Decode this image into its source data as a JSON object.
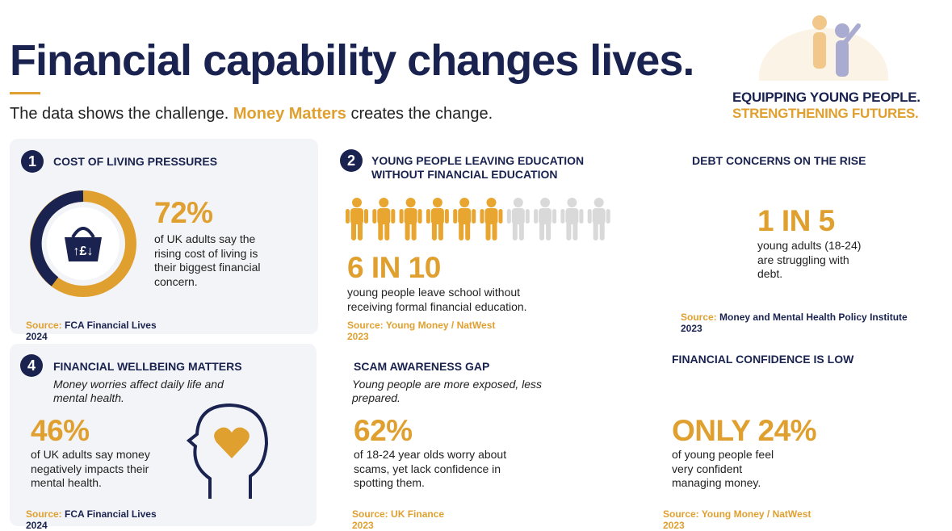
{
  "header": {
    "title": "Financial capability changes lives.",
    "subtitle_prefix": "The data shows the challenge.",
    "subtitle_highlight": "Money Matters",
    "subtitle_suffix": "creates the change."
  },
  "tagline": [
    "EQUIPPING YOUNG PEOPLE.",
    "STRENGTHENING FUTURES."
  ],
  "cards": [
    {
      "number": "1",
      "heading": "COST OF LIVING PRESSURES",
      "stat": "72%",
      "description": "of UK adults say the rising cost of living is their biggest financial concern.",
      "source_label": "Source:",
      "source": "FCA Financial Lives",
      "year": "2024"
    },
    {
      "number": "2",
      "heading": "YOUNG PEOPLE LEAVING EDUCATION WITHOUT FINANCIAL EDUCATION",
      "stat": "6 IN 10",
      "description": "young people leave school without receiving formal financial education.",
      "source_label": "Source:",
      "source": "Young Money / NatWest",
      "year": "2023"
    },
    {
      "heading": "DEBT CONCERNS ON THE RISE",
      "stat": "1 IN 5",
      "description": "young adults (18-24) are struggling with debt.",
      "source_label": "Source:",
      "source": "Money and Mental Health Policy Institute",
      "year": "2023"
    },
    {
      "number": "4",
      "heading": "FINANCIAL WELLBEING MATTERS",
      "subheading": "Money worries affect daily life and mental health.",
      "stat": "46%",
      "description": "of UK adults say money negatively impacts their mental health.",
      "source_label": "Source:",
      "source": "FCA Financial Lives",
      "year": "2024"
    },
    {
      "heading": "SCAM AWARENESS GAP",
      "subheading": "Young people are more exposed, less prepared.",
      "stat": "62%",
      "description": "of 18-24 year olds worry about scams, yet lack confidence in spotting them.",
      "source_label": "Source:",
      "source": "UK Finance",
      "year": "2023"
    },
    {
      "heading": "FINANCIAL CONFIDENCE IS LOW",
      "stat": "ONLY 24%",
      "description": "of young people feel very confident managing money.",
      "source_label": "Source:",
      "source": "Young Money / NatWest",
      "year": "2023"
    }
  ]
}
